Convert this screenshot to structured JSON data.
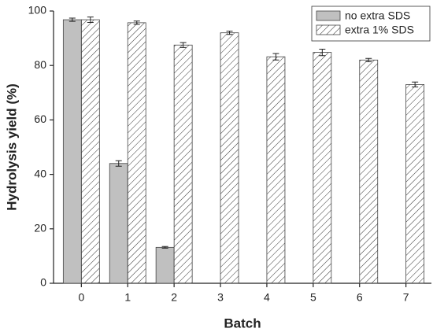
{
  "chart_data": {
    "type": "bar",
    "x_label": "Batch",
    "y_label": "Hydrolysis yield (%)",
    "categories": [
      "0",
      "1",
      "2",
      "3",
      "4",
      "5",
      "6",
      "7"
    ],
    "series": [
      {
        "name": "no extra SDS",
        "color": "#c0c0c0",
        "pattern": "solid",
        "values": [
          96.8,
          44,
          13.2,
          null,
          null,
          null,
          null,
          null
        ],
        "errors": [
          0.6,
          1,
          0.3,
          null,
          null,
          null,
          null,
          null
        ]
      },
      {
        "name": "extra 1% SDS",
        "color": "#ffffff",
        "pattern": "hatch",
        "values": [
          96.8,
          95.7,
          87.5,
          92,
          83.2,
          84.8,
          82,
          73
        ],
        "errors": [
          1,
          0.6,
          0.9,
          0.6,
          1.2,
          1.2,
          0.6,
          0.9
        ]
      }
    ],
    "ylim": [
      0,
      100
    ],
    "yticks": [
      0,
      20,
      40,
      60,
      80,
      100
    ],
    "legend": "upper right"
  }
}
